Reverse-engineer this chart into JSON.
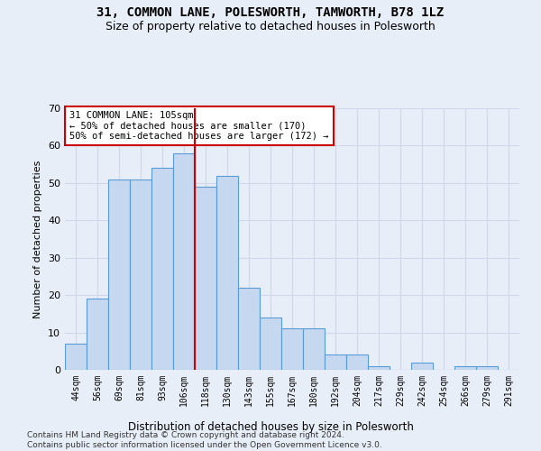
{
  "title": "31, COMMON LANE, POLESWORTH, TAMWORTH, B78 1LZ",
  "subtitle": "Size of property relative to detached houses in Polesworth",
  "xlabel": "Distribution of detached houses by size in Polesworth",
  "ylabel": "Number of detached properties",
  "categories": [
    "44sqm",
    "56sqm",
    "69sqm",
    "81sqm",
    "93sqm",
    "106sqm",
    "118sqm",
    "130sqm",
    "143sqm",
    "155sqm",
    "167sqm",
    "180sqm",
    "192sqm",
    "204sqm",
    "217sqm",
    "229sqm",
    "242sqm",
    "254sqm",
    "266sqm",
    "279sqm",
    "291sqm"
  ],
  "values": [
    7,
    19,
    51,
    51,
    54,
    58,
    49,
    52,
    22,
    14,
    11,
    11,
    4,
    4,
    1,
    0,
    2,
    0,
    1,
    1,
    0
  ],
  "bar_color": "#c5d8f0",
  "bar_edge_color": "#5b9bd5",
  "vline_x": 5.5,
  "vline_color": "#cc0000",
  "annotation_text": "31 COMMON LANE: 105sqm\n← 50% of detached houses are smaller (170)\n50% of semi-detached houses are larger (172) →",
  "annotation_box_color": "#ffffff",
  "annotation_box_edge": "#cc0000",
  "ylim": [
    0,
    70
  ],
  "yticks": [
    0,
    10,
    20,
    30,
    40,
    50,
    60,
    70
  ],
  "grid_color": "#d0d8e8",
  "bg_color": "#e8eef8",
  "footer": "Contains HM Land Registry data © Crown copyright and database right 2024.\nContains public sector information licensed under the Open Government Licence v3.0."
}
